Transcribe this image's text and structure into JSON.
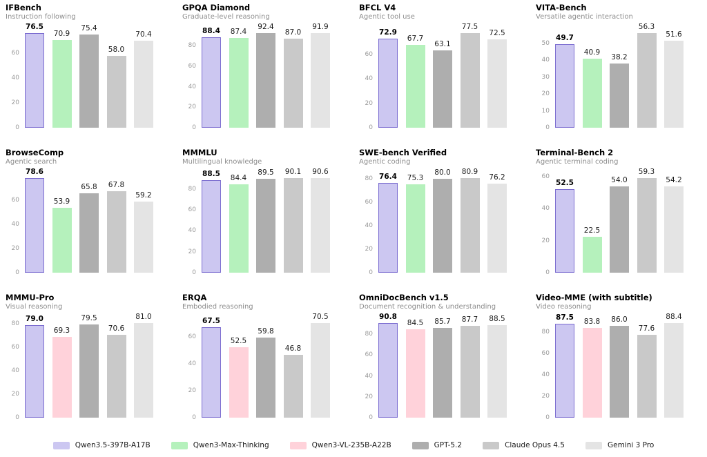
{
  "page": {
    "background": "#ffffff"
  },
  "models": {
    "Qwen3.5-397B-A17B": {
      "fill": "#ccc7f1",
      "border": "#7b6cd0",
      "highlight": true
    },
    "Qwen3-Max-Thinking": {
      "fill": "#b5f1bc"
    },
    "Qwen3-VL-235B-A22B": {
      "fill": "#ffd2da"
    },
    "GPT-5.2": {
      "fill": "#aeaeae"
    },
    "Claude Opus 4.5": {
      "fill": "#c9c9c9"
    },
    "Gemini 3 Pro": {
      "fill": "#e4e4e4"
    }
  },
  "legend": {
    "items": [
      {
        "label": "Qwen3.5-397B-A17B",
        "model": "Qwen3.5-397B-A17B"
      },
      {
        "label": "Qwen3-Max-Thinking",
        "model": "Qwen3-Max-Thinking"
      },
      {
        "label": "Qwen3-VL-235B-A22B",
        "model": "Qwen3-VL-235B-A22B"
      },
      {
        "label": "GPT-5.2",
        "model": "GPT-5.2"
      },
      {
        "label": "Claude Opus 4.5",
        "model": "Claude Opus 4.5"
      },
      {
        "label": "Gemini 3 Pro",
        "model": "Gemini 3 Pro"
      }
    ]
  },
  "chart_data": [
    {
      "type": "bar",
      "title": "IFBench",
      "subtitle": "Instruction following",
      "yticks": [
        0,
        20,
        40,
        60
      ],
      "ymax": 78.0,
      "grid": false,
      "legend_position": "bottom-shared",
      "bars": [
        {
          "model": "Qwen3.5-397B-A17B",
          "value": 76.5,
          "label": "76.5"
        },
        {
          "model": "Qwen3-Max-Thinking",
          "value": 70.9,
          "label": "70.9"
        },
        {
          "model": "GPT-5.2",
          "value": 75.4,
          "label": "75.4"
        },
        {
          "model": "Claude Opus 4.5",
          "value": 58.0,
          "label": "58.0"
        },
        {
          "model": "Gemini 3 Pro",
          "value": 70.4,
          "label": "70.4"
        }
      ]
    },
    {
      "type": "bar",
      "title": "GPQA Diamond",
      "subtitle": "Graduate-level reasoning",
      "yticks": [
        0,
        20,
        40,
        60,
        80
      ],
      "ymax": 94.2,
      "grid": false,
      "legend_position": "bottom-shared",
      "bars": [
        {
          "model": "Qwen3.5-397B-A17B",
          "value": 88.4,
          "label": "88.4"
        },
        {
          "model": "Qwen3-Max-Thinking",
          "value": 87.4,
          "label": "87.4"
        },
        {
          "model": "GPT-5.2",
          "value": 92.4,
          "label": "92.4"
        },
        {
          "model": "Claude Opus 4.5",
          "value": 87.0,
          "label": "87.0"
        },
        {
          "model": "Gemini 3 Pro",
          "value": 91.9,
          "label": "91.9"
        }
      ]
    },
    {
      "type": "bar",
      "title": "BFCL V4",
      "subtitle": "Agentic tool use",
      "yticks": [
        0,
        20,
        40,
        60
      ],
      "ymax": 79.0,
      "grid": false,
      "legend_position": "bottom-shared",
      "bars": [
        {
          "model": "Qwen3.5-397B-A17B",
          "value": 72.9,
          "label": "72.9"
        },
        {
          "model": "Qwen3-Max-Thinking",
          "value": 67.7,
          "label": "67.7"
        },
        {
          "model": "GPT-5.2",
          "value": 63.1,
          "label": "63.1"
        },
        {
          "model": "Claude Opus 4.5",
          "value": 77.5,
          "label": "77.5"
        },
        {
          "model": "Gemini 3 Pro",
          "value": 72.5,
          "label": "72.5"
        }
      ]
    },
    {
      "type": "bar",
      "title": "VITA-Bench",
      "subtitle": "Versatile agentic interaction",
      "yticks": [
        0,
        10,
        20,
        30,
        40,
        50
      ],
      "ymax": 57.4,
      "grid": false,
      "legend_position": "bottom-shared",
      "bars": [
        {
          "model": "Qwen3.5-397B-A17B",
          "value": 49.7,
          "label": "49.7"
        },
        {
          "model": "Qwen3-Max-Thinking",
          "value": 40.9,
          "label": "40.9"
        },
        {
          "model": "GPT-5.2",
          "value": 38.2,
          "label": "38.2"
        },
        {
          "model": "Claude Opus 4.5",
          "value": 56.3,
          "label": "56.3"
        },
        {
          "model": "Gemini 3 Pro",
          "value": 51.6,
          "label": "51.6"
        }
      ]
    },
    {
      "type": "bar",
      "title": "BrowseComp",
      "subtitle": "Agentic search",
      "yticks": [
        0,
        20,
        40,
        60
      ],
      "ymax": 80.2,
      "grid": false,
      "legend_position": "bottom-shared",
      "bars": [
        {
          "model": "Qwen3.5-397B-A17B",
          "value": 78.6,
          "label": "78.6"
        },
        {
          "model": "Qwen3-Max-Thinking",
          "value": 53.9,
          "label": "53.9"
        },
        {
          "model": "GPT-5.2",
          "value": 65.8,
          "label": "65.8"
        },
        {
          "model": "Claude Opus 4.5",
          "value": 67.8,
          "label": "67.8"
        },
        {
          "model": "Gemini 3 Pro",
          "value": 59.2,
          "label": "59.2"
        }
      ]
    },
    {
      "type": "bar",
      "title": "MMMLU",
      "subtitle": "Multilingual knowledge",
      "yticks": [
        0,
        20,
        40,
        60,
        80
      ],
      "ymax": 92.4,
      "grid": false,
      "legend_position": "bottom-shared",
      "bars": [
        {
          "model": "Qwen3.5-397B-A17B",
          "value": 88.5,
          "label": "88.5"
        },
        {
          "model": "Qwen3-Max-Thinking",
          "value": 84.4,
          "label": "84.4"
        },
        {
          "model": "GPT-5.2",
          "value": 89.5,
          "label": "89.5"
        },
        {
          "model": "Claude Opus 4.5",
          "value": 90.1,
          "label": "90.1"
        },
        {
          "model": "Gemini 3 Pro",
          "value": 90.6,
          "label": "90.6"
        }
      ]
    },
    {
      "type": "bar",
      "title": "SWE-bench Verified",
      "subtitle": "Agentic coding",
      "yticks": [
        0,
        20,
        40,
        60,
        80
      ],
      "ymax": 82.5,
      "grid": false,
      "legend_position": "bottom-shared",
      "bars": [
        {
          "model": "Qwen3.5-397B-A17B",
          "value": 76.4,
          "label": "76.4"
        },
        {
          "model": "Qwen3-Max-Thinking",
          "value": 75.3,
          "label": "75.3"
        },
        {
          "model": "GPT-5.2",
          "value": 80.0,
          "label": "80.0"
        },
        {
          "model": "Claude Opus 4.5",
          "value": 80.9,
          "label": "80.9"
        },
        {
          "model": "Gemini 3 Pro",
          "value": 76.2,
          "label": "76.2"
        }
      ]
    },
    {
      "type": "bar",
      "title": "Terminal-Bench 2",
      "subtitle": "Agentic terminal coding",
      "yticks": [
        0,
        20,
        40,
        60
      ],
      "ymax": 60.5,
      "grid": false,
      "legend_position": "bottom-shared",
      "bars": [
        {
          "model": "Qwen3.5-397B-A17B",
          "value": 52.5,
          "label": "52.5"
        },
        {
          "model": "Qwen3-Max-Thinking",
          "value": 22.5,
          "label": "22.5"
        },
        {
          "model": "GPT-5.2",
          "value": 54.0,
          "label": "54.0"
        },
        {
          "model": "Claude Opus 4.5",
          "value": 59.3,
          "label": "59.3"
        },
        {
          "model": "Gemini 3 Pro",
          "value": 54.2,
          "label": "54.2"
        }
      ]
    },
    {
      "type": "bar",
      "title": "MMMU-Pro",
      "subtitle": "Visual reasoning",
      "yticks": [
        0,
        20,
        40,
        60,
        80
      ],
      "ymax": 82.6,
      "grid": false,
      "legend_position": "bottom-shared",
      "bars": [
        {
          "model": "Qwen3.5-397B-A17B",
          "value": 79.0,
          "label": "79.0"
        },
        {
          "model": "Qwen3-VL-235B-A22B",
          "value": 69.3,
          "label": "69.3"
        },
        {
          "model": "GPT-5.2",
          "value": 79.5,
          "label": "79.5"
        },
        {
          "model": "Claude Opus 4.5",
          "value": 70.6,
          "label": "70.6"
        },
        {
          "model": "Gemini 3 Pro",
          "value": 81.0,
          "label": "81.0"
        }
      ]
    },
    {
      "type": "bar",
      "title": "ERQA",
      "subtitle": "Embodied reasoning",
      "yticks": [
        0,
        20,
        40,
        60
      ],
      "ymax": 71.9,
      "grid": false,
      "legend_position": "bottom-shared",
      "bars": [
        {
          "model": "Qwen3.5-397B-A17B",
          "value": 67.5,
          "label": "67.5"
        },
        {
          "model": "Qwen3-VL-235B-A22B",
          "value": 52.5,
          "label": "52.5"
        },
        {
          "model": "GPT-5.2",
          "value": 59.8,
          "label": "59.8"
        },
        {
          "model": "Claude Opus 4.5",
          "value": 46.8,
          "label": "46.8"
        },
        {
          "model": "Gemini 3 Pro",
          "value": 70.5,
          "label": "70.5"
        }
      ]
    },
    {
      "type": "bar",
      "title": "OmniDocBench v1.5",
      "subtitle": "Document recognition & understanding",
      "yticks": [
        0,
        20,
        40,
        60,
        80
      ],
      "ymax": 92.6,
      "grid": false,
      "legend_position": "bottom-shared",
      "bars": [
        {
          "model": "Qwen3.5-397B-A17B",
          "value": 90.8,
          "label": "90.8"
        },
        {
          "model": "Qwen3-VL-235B-A22B",
          "value": 84.5,
          "label": "84.5"
        },
        {
          "model": "GPT-5.2",
          "value": 85.7,
          "label": "85.7"
        },
        {
          "model": "Claude Opus 4.5",
          "value": 87.7,
          "label": "87.7"
        },
        {
          "model": "Gemini 3 Pro",
          "value": 88.5,
          "label": "88.5"
        }
      ]
    },
    {
      "type": "bar",
      "title": "Video-MME (with subtitle)",
      "subtitle": "Video reasoning",
      "yticks": [
        0,
        20,
        40,
        60,
        80
      ],
      "ymax": 90.2,
      "grid": false,
      "legend_position": "bottom-shared",
      "bars": [
        {
          "model": "Qwen3.5-397B-A17B",
          "value": 87.5,
          "label": "87.5"
        },
        {
          "model": "Qwen3-VL-235B-A22B",
          "value": 83.8,
          "label": "83.8"
        },
        {
          "model": "GPT-5.2",
          "value": 86.0,
          "label": "86.0"
        },
        {
          "model": "Claude Opus 4.5",
          "value": 77.6,
          "label": "77.6"
        },
        {
          "model": "Gemini 3 Pro",
          "value": 88.4,
          "label": "88.4"
        }
      ]
    }
  ]
}
